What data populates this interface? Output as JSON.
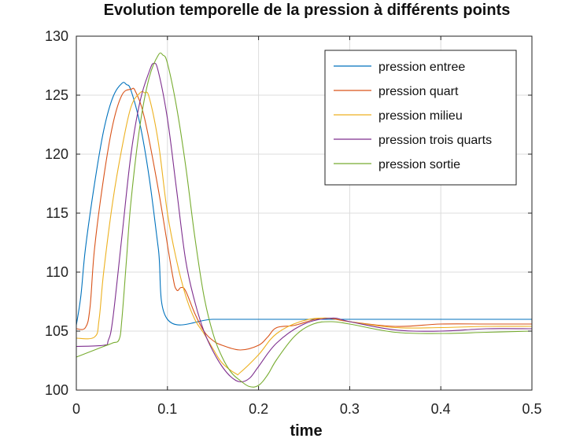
{
  "chart_data": {
    "type": "line",
    "title": "Evolution temporelle de la pression à différents points",
    "xlabel": "time",
    "ylabel": "",
    "xlim": [
      0,
      0.5
    ],
    "ylim": [
      100,
      130
    ],
    "xticks": [
      "0",
      "0.1",
      "0.2",
      "0.3",
      "0.4",
      "0.5"
    ],
    "yticks": [
      "100",
      "105",
      "110",
      "115",
      "120",
      "125",
      "130"
    ],
    "grid": true,
    "legend_position": "top-right",
    "series": [
      {
        "name": "pression entree",
        "color": "#0072bd",
        "x": [
          0,
          0.005,
          0.01,
          0.02,
          0.03,
          0.04,
          0.05,
          0.055,
          0.06,
          0.07,
          0.08,
          0.09,
          0.1,
          0.15,
          0.2,
          0.25,
          0.3,
          0.35,
          0.4,
          0.45,
          0.5
        ],
        "y": [
          105.5,
          108,
          112,
          117.5,
          122,
          124.8,
          126,
          125.9,
          125.4,
          122.5,
          118,
          112,
          106,
          106,
          106,
          106,
          106,
          106,
          106,
          106,
          106
        ]
      },
      {
        "name": "pression quart",
        "color": "#d95319",
        "x": [
          0,
          0.01,
          0.015,
          0.02,
          0.03,
          0.04,
          0.05,
          0.06,
          0.065,
          0.075,
          0.09,
          0.105,
          0.11,
          0.115,
          0.12,
          0.13,
          0.14,
          0.15,
          0.16,
          0.18,
          0.2,
          0.21,
          0.22,
          0.24,
          0.27,
          0.3,
          0.35,
          0.4,
          0.45,
          0.5
        ],
        "y": [
          105.2,
          105.3,
          107,
          112,
          118,
          122.5,
          125,
          125.5,
          125.3,
          123,
          117,
          110,
          108.5,
          108.7,
          108.4,
          106.5,
          105,
          104.2,
          103.8,
          103.4,
          103.8,
          104.5,
          105.3,
          105.5,
          106.1,
          105.8,
          105.4,
          105.6,
          105.6,
          105.6
        ]
      },
      {
        "name": "pression milieu",
        "color": "#edb120",
        "x": [
          0,
          0.02,
          0.025,
          0.03,
          0.04,
          0.05,
          0.06,
          0.07,
          0.075,
          0.08,
          0.09,
          0.1,
          0.11,
          0.12,
          0.13,
          0.14,
          0.15,
          0.16,
          0.175,
          0.18,
          0.2,
          0.22,
          0.25,
          0.28,
          0.3,
          0.35,
          0.4,
          0.45,
          0.5
        ],
        "y": [
          104.4,
          104.5,
          106,
          110,
          116,
          120.5,
          124,
          125.2,
          125.2,
          124.8,
          121,
          115,
          111,
          108,
          106,
          104.8,
          103.5,
          102.3,
          101.4,
          101.5,
          103,
          104.8,
          105.9,
          106.1,
          105.8,
          105.3,
          105.3,
          105.4,
          105.4
        ]
      },
      {
        "name": "pression trois quarts",
        "color": "#7e2f8e",
        "x": [
          0,
          0.03,
          0.035,
          0.04,
          0.05,
          0.06,
          0.07,
          0.08,
          0.085,
          0.09,
          0.1,
          0.11,
          0.12,
          0.13,
          0.14,
          0.15,
          0.16,
          0.17,
          0.18,
          0.19,
          0.2,
          0.22,
          0.25,
          0.28,
          0.3,
          0.35,
          0.4,
          0.45,
          0.5
        ],
        "y": [
          103.7,
          103.8,
          104.2,
          106,
          113,
          120,
          124.5,
          127,
          127.7,
          127,
          123,
          117,
          111,
          107.5,
          105,
          103.3,
          102,
          101.1,
          100.7,
          101,
          102,
          104,
          105.6,
          106.1,
          105.8,
          105.1,
          105,
          105.2,
          105.2
        ]
      },
      {
        "name": "pression sortie",
        "color": "#77ac30",
        "x": [
          0,
          0.01,
          0.02,
          0.03,
          0.04,
          0.047,
          0.05,
          0.055,
          0.06,
          0.07,
          0.08,
          0.09,
          0.095,
          0.1,
          0.11,
          0.12,
          0.13,
          0.14,
          0.15,
          0.16,
          0.17,
          0.18,
          0.19,
          0.2,
          0.21,
          0.22,
          0.24,
          0.26,
          0.28,
          0.3,
          0.35,
          0.4,
          0.45,
          0.5
        ],
        "y": [
          102.8,
          103.1,
          103.4,
          103.7,
          104,
          104.3,
          106,
          111,
          116,
          122.5,
          126.5,
          128.4,
          128.4,
          127.7,
          124,
          119,
          113,
          108,
          104.8,
          102.8,
          101.5,
          100.8,
          100.3,
          100.4,
          101.3,
          102.6,
          104.6,
          105.6,
          105.8,
          105.6,
          104.9,
          104.8,
          104.9,
          105
        ]
      }
    ]
  }
}
